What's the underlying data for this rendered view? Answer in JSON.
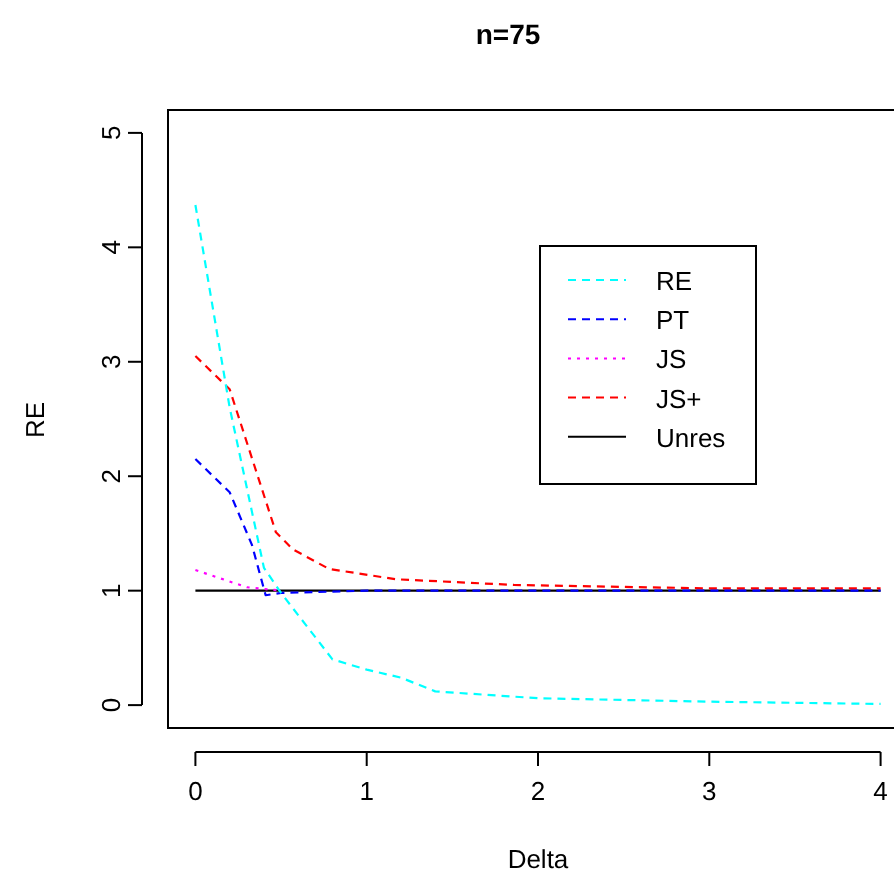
{
  "chart_data": {
    "type": "line",
    "title": "n=75",
    "xlabel": "Delta",
    "ylabel": "RE",
    "xlim": [
      -0.16,
      4.16
    ],
    "ylim": [
      -0.2,
      5.2
    ],
    "xticks": [
      0,
      1,
      2,
      3,
      4
    ],
    "yticks": [
      0,
      1,
      2,
      3,
      4,
      5
    ],
    "grid": false,
    "legend": "right",
    "marker": "none",
    "series": [
      {
        "name": "RE",
        "color": "#00ffff",
        "line_style": "dashed",
        "x": [
          0,
          0.2,
          0.4,
          0.5,
          0.8,
          1.0,
          1.2,
          1.4,
          2,
          3,
          4
        ],
        "values": [
          4.37,
          2.6,
          1.2,
          0.98,
          0.4,
          0.31,
          0.24,
          0.12,
          0.06,
          0.03,
          0.01
        ]
      },
      {
        "name": "PT",
        "color": "#0000ff",
        "line_style": "dashed",
        "x": [
          0,
          0.2,
          0.33,
          0.41,
          0.5,
          1,
          2,
          3,
          4
        ],
        "values": [
          2.15,
          1.86,
          1.4,
          0.96,
          0.98,
          1,
          1,
          1,
          1
        ]
      },
      {
        "name": "JS",
        "color": "#ff00ff",
        "line_style": "dotted",
        "x": [
          0,
          0.3,
          0.5
        ],
        "values": [
          1.18,
          1.03,
          1.0
        ]
      },
      {
        "name": "JS+",
        "color": "#ff0000",
        "line_style": "dashed",
        "x": [
          0,
          0.2,
          0.47,
          0.57,
          0.78,
          1.17,
          1.86,
          3,
          4
        ],
        "values": [
          3.05,
          2.76,
          1.51,
          1.36,
          1.19,
          1.1,
          1.05,
          1.02,
          1.02
        ]
      },
      {
        "name": "Unres",
        "color": "#000000",
        "line_style": "solid",
        "x": [
          0,
          4
        ],
        "values": [
          1,
          1
        ]
      }
    ]
  }
}
